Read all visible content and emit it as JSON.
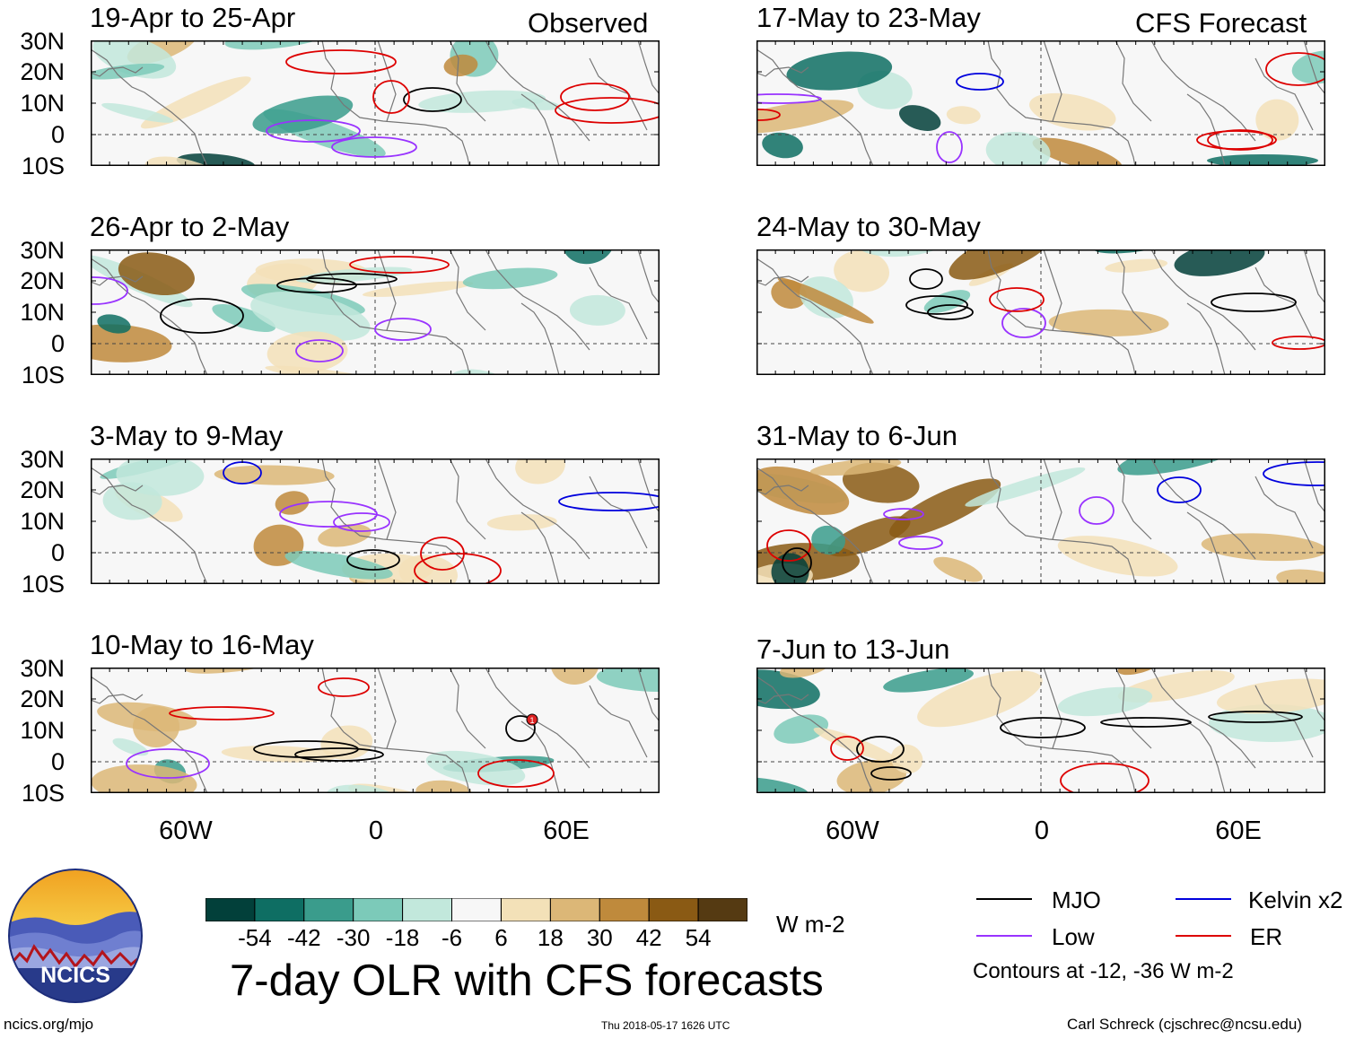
{
  "title": "7-day OLR with CFS forecasts",
  "footer": {
    "left": "ncics.org/mjo",
    "center": "Thu 2018-05-17 1626 UTC",
    "right": "Carl Schreck (cjschrec@ncsu.edu)"
  },
  "logo": {
    "text": "NCICS"
  },
  "column_labels": {
    "left": "Observed",
    "right": "CFS Forecast"
  },
  "panels": [
    {
      "id": "p1",
      "label": "19-Apr to 25-Apr"
    },
    {
      "id": "p2",
      "label": "26-Apr to 2-May"
    },
    {
      "id": "p3",
      "label": "3-May to 9-May"
    },
    {
      "id": "p4",
      "label": "10-May to 16-May"
    },
    {
      "id": "p5",
      "label": "17-May to 23-May"
    },
    {
      "id": "p6",
      "label": "24-May to 30-May"
    },
    {
      "id": "p7",
      "label": "31-May to 6-Jun"
    },
    {
      "id": "p8",
      "label": "7-Jun to 13-Jun"
    }
  ],
  "axes": {
    "lat_labels": [
      "30N",
      "20N",
      "10N",
      "0",
      "10S"
    ],
    "lon_labels": [
      "60W",
      "0",
      "60E"
    ]
  },
  "colorbar": {
    "unit": "W m-2",
    "labels": [
      "-54",
      "-42",
      "-30",
      "-18",
      "-6",
      "6",
      "18",
      "30",
      "42",
      "54"
    ],
    "colors": [
      "#02403a",
      "#0e6e63",
      "#3a9c8c",
      "#7ccab9",
      "#c2e8dc",
      "#f7f7f7",
      "#f3e1b8",
      "#dcb777",
      "#bf8a3c",
      "#8a5a14",
      "#553a12"
    ]
  },
  "legend": {
    "items": [
      {
        "label": "MJO",
        "color": "#000000"
      },
      {
        "label": "Kelvin x2",
        "color": "#0000dd"
      },
      {
        "label": "Low",
        "color": "#9933ff"
      },
      {
        "label": "ER",
        "color": "#dd0000"
      }
    ],
    "note": "Contours at -12, -36 W m-2"
  },
  "annotation_marker": "1"
}
